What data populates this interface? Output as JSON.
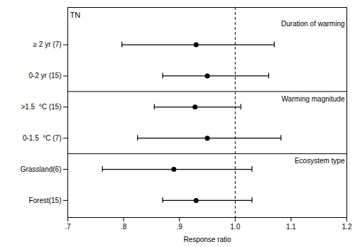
{
  "chart_data": {
    "type": "forest",
    "title": "TN",
    "xlabel": "Response ratio",
    "xlim": [
      0.7,
      1.2
    ],
    "xticks": [
      {
        "value": 0.7,
        "label": ".7"
      },
      {
        "value": 0.8,
        "label": ".8"
      },
      {
        "value": 0.9,
        "label": ".9"
      },
      {
        "value": 1.0,
        "label": "1.0"
      },
      1.1,
      1.2
    ],
    "grid": false,
    "reference_lines": [
      {
        "x": 1.0,
        "line_style": "dashed"
      }
    ],
    "groups": [
      {
        "name": "Duration of warming",
        "categories": [
          "≥ 2 yr (7)",
          "0-2 yr (15)"
        ],
        "values": [
          0.93,
          0.95
        ],
        "ci_lo": [
          0.797,
          0.87
        ],
        "ci_hi": [
          1.07,
          1.06
        ]
      },
      {
        "name": "Warming magnitude",
        "categories": [
          ">1.5  °C (15)",
          "0-1.5  °C (7)"
        ],
        "values": [
          0.928,
          0.95
        ],
        "ci_lo": [
          0.855,
          0.825
        ],
        "ci_hi": [
          1.01,
          1.082
        ]
      },
      {
        "name": "Ecosystem type",
        "categories": [
          "Grassland(6)",
          "Forest(15)"
        ],
        "values": [
          0.89,
          0.93
        ],
        "ci_lo": [
          0.762,
          0.87
        ],
        "ci_hi": [
          1.03,
          1.03
        ]
      }
    ]
  }
}
